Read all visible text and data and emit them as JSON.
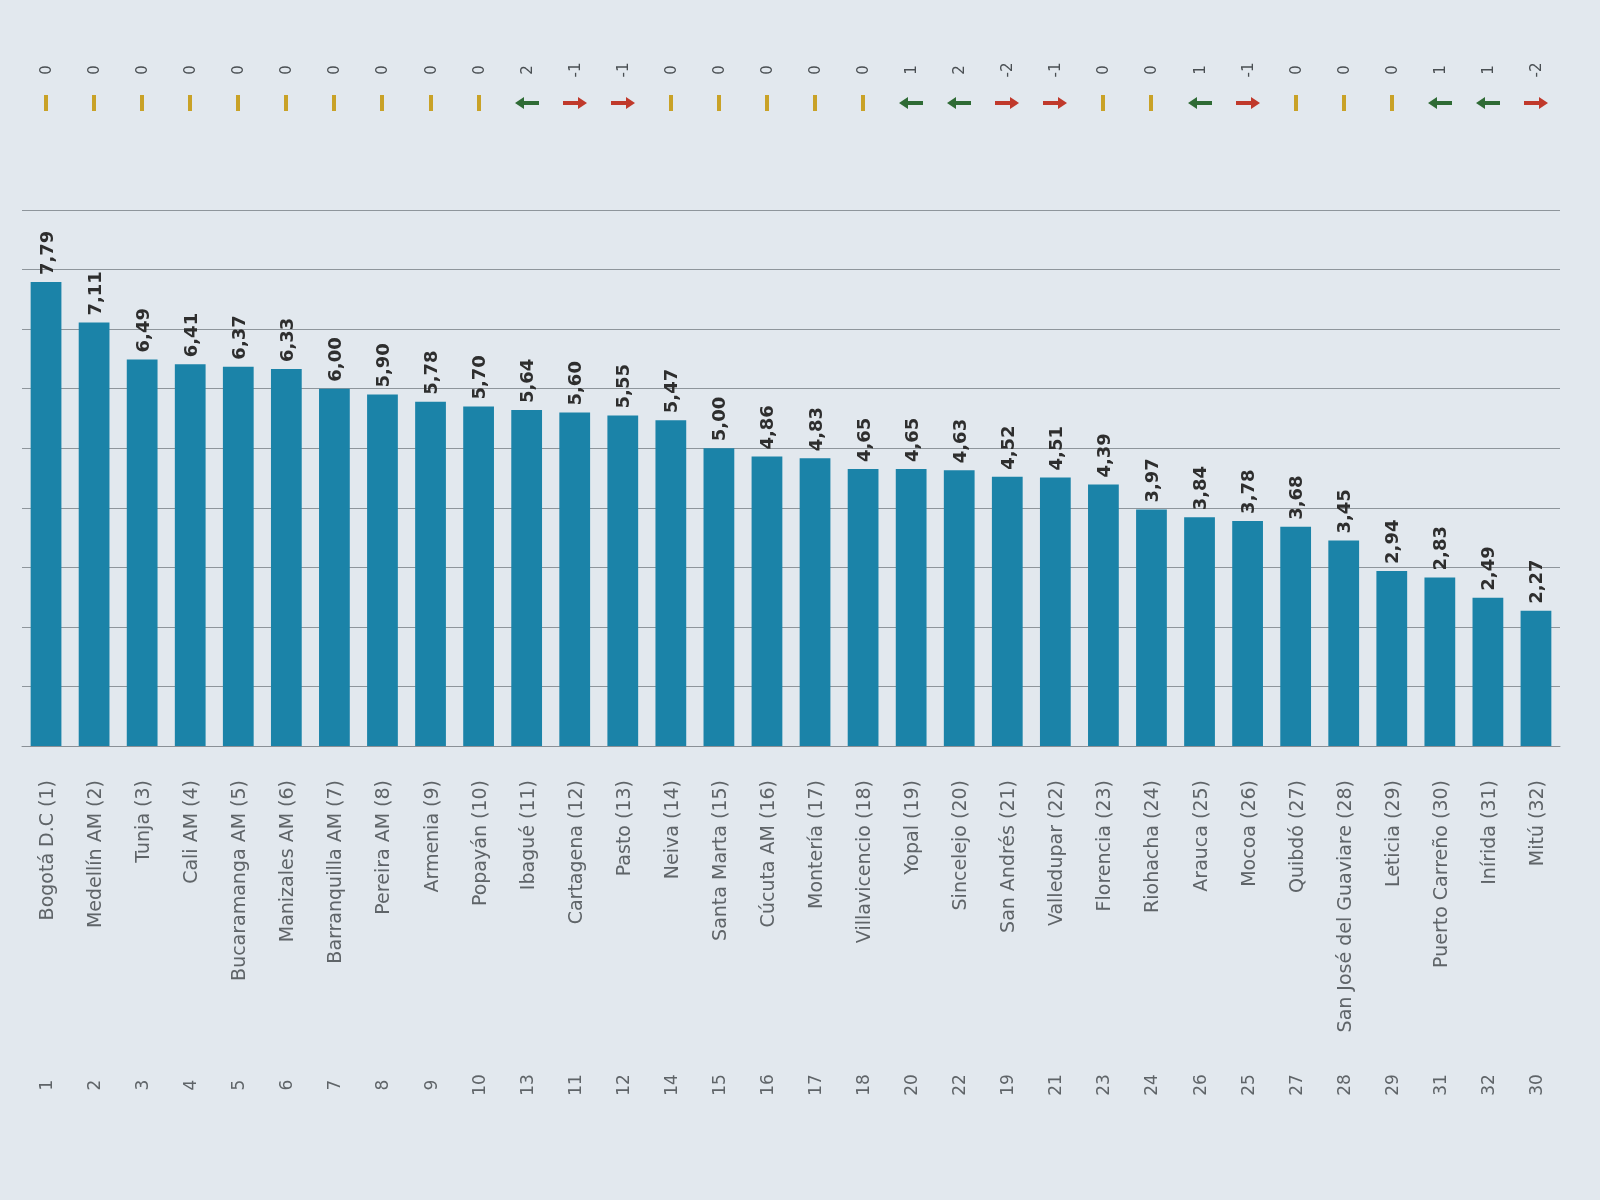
{
  "chart_data": {
    "type": "bar",
    "categories": [
      "Bogotá D.C (1)",
      "Medellín AM (2)",
      "Tunja (3)",
      "Cali AM (4)",
      "Bucaramanga AM (5)",
      "Manizales AM (6)",
      "Barranquilla AM (7)",
      "Pereira AM (8)",
      "Armenia (9)",
      "Popayán (10)",
      "Ibagué (11)",
      "Cartagena (12)",
      "Pasto (13)",
      "Neiva (14)",
      "Santa Marta (15)",
      "Cúcuta AM (16)",
      "Montería (17)",
      "Villavicencio (18)",
      "Yopal (19)",
      "Sincelejo (20)",
      "San Andrés (21)",
      "Valledupar (22)",
      "Florencia (23)",
      "Riohacha (24)",
      "Arauca (25)",
      "Mocoa (26)",
      "Quibdó (27)",
      "San José del Guaviare (28)",
      "Leticia (29)",
      "Puerto Carreño (30)",
      "Inírida (31)",
      "Mitú (32)"
    ],
    "values": [
      7.79,
      7.11,
      6.49,
      6.41,
      6.37,
      6.33,
      6.0,
      5.9,
      5.78,
      5.7,
      5.64,
      5.6,
      5.55,
      5.47,
      5.0,
      4.86,
      4.83,
      4.65,
      4.65,
      4.63,
      4.52,
      4.51,
      4.39,
      3.97,
      3.84,
      3.78,
      3.68,
      3.45,
      2.94,
      2.83,
      2.49,
      2.27
    ],
    "value_labels": [
      "7,79",
      "7,11",
      "6,49",
      "6,41",
      "6,37",
      "6,33",
      "6,00",
      "5,90",
      "5,78",
      "5,70",
      "5,64",
      "5,60",
      "5,55",
      "5,47",
      "5,00",
      "4,86",
      "4,83",
      "4,65",
      "4,65",
      "4,63",
      "4,52",
      "4,51",
      "4,39",
      "3,97",
      "3,84",
      "3,78",
      "3,68",
      "3,45",
      "2,94",
      "2,83",
      "2,49",
      "2,27"
    ],
    "color": "#1b83a8",
    "ylim": [
      0,
      9
    ],
    "yticks": [
      {
        "value": 0,
        "label": null
      },
      {
        "value": 1,
        "label": null
      },
      {
        "value": 2,
        "label": null
      },
      {
        "value": 3,
        "label": null
      },
      {
        "value": 4,
        "label": null
      },
      {
        "value": 5,
        "label": null
      },
      {
        "value": 6,
        "label": null
      },
      {
        "value": 7,
        "label": null
      },
      {
        "value": 8,
        "label": null
      },
      {
        "value": 9,
        "label": null
      }
    ],
    "grid": "y",
    "tick_labels": "x",
    "annotations": [
      "1",
      "0",
      "2",
      "0",
      "3",
      "0",
      "4",
      "0",
      "5",
      "0",
      "6",
      "0",
      "7",
      "0",
      "8",
      "0",
      "9",
      "0",
      "10",
      "0",
      "13",
      "2",
      "11",
      "-1",
      "12",
      "-1",
      "14",
      "0",
      "15",
      "0",
      "16",
      "0",
      "17",
      "0",
      "18",
      "0",
      "20",
      "1",
      "22",
      "2",
      "19",
      "-2",
      "21",
      "-1",
      "23",
      "0",
      "24",
      "0",
      "26",
      "1",
      "25",
      "-1",
      "27",
      "0",
      "28",
      "0",
      "29",
      "0",
      "31",
      "1",
      "32",
      "1",
      "30",
      "-2"
    ]
  }
}
